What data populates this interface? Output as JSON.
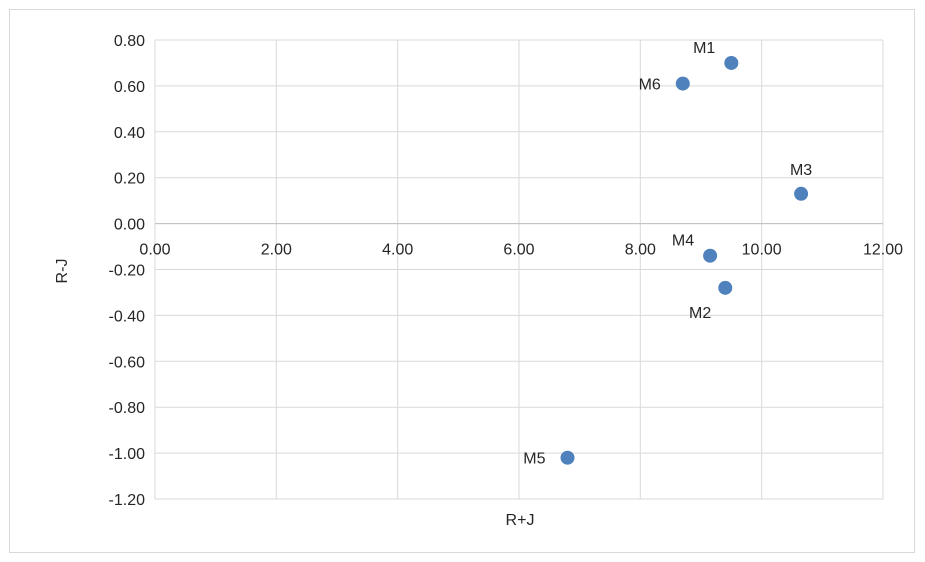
{
  "chart_data": {
    "type": "scatter",
    "title": "",
    "xlabel": "R+J",
    "ylabel": "R-J",
    "xlim": [
      0,
      12
    ],
    "ylim": [
      -1.2,
      0.8
    ],
    "x_ticks": [
      "0.00",
      "2.00",
      "4.00",
      "6.00",
      "8.00",
      "10.00",
      "12.00"
    ],
    "y_ticks": [
      "0.80",
      "0.60",
      "0.40",
      "0.20",
      "0.00",
      "-0.20",
      "-0.40",
      "-0.60",
      "-0.80",
      "-1.00",
      "-1.20"
    ],
    "grid": true,
    "marker_color": "#4f81bd",
    "gridline_color": "#d9d9d9",
    "points": [
      {
        "label": "M1",
        "x": 9.5,
        "y": 0.7,
        "label_pos": "above-left"
      },
      {
        "label": "M2",
        "x": 9.4,
        "y": -0.28,
        "label_pos": "below-left"
      },
      {
        "label": "M3",
        "x": 10.65,
        "y": 0.13,
        "label_pos": "above"
      },
      {
        "label": "M4",
        "x": 9.15,
        "y": -0.14,
        "label_pos": "above-left"
      },
      {
        "label": "M5",
        "x": 6.8,
        "y": -1.02,
        "label_pos": "left"
      },
      {
        "label": "M6",
        "x": 8.7,
        "y": 0.61,
        "label_pos": "left"
      }
    ]
  }
}
